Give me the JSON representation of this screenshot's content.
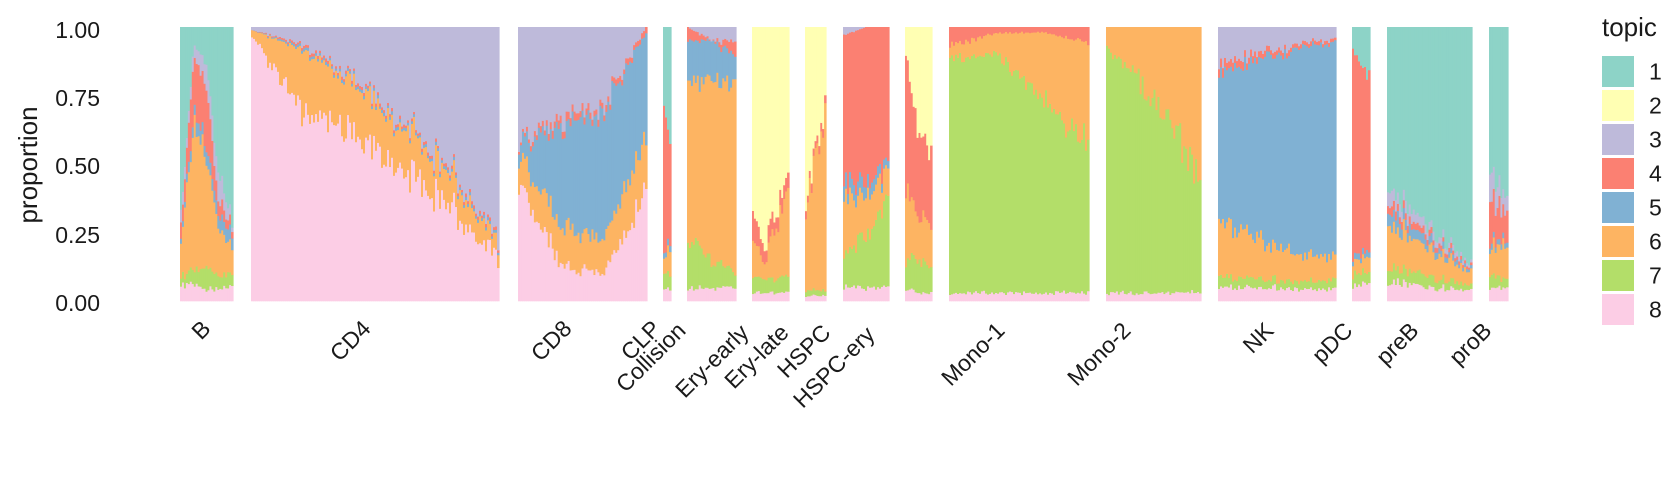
{
  "chart_data": {
    "type": "stacked-bar",
    "title": "",
    "xlabel": "",
    "ylabel": "proportion",
    "ylim": [
      0,
      1
    ],
    "yticks": [
      "0.00",
      "0.25",
      "0.50",
      "0.75",
      "1.00"
    ],
    "legend": {
      "title": "topic",
      "position": "right",
      "labels": [
        "1",
        "2",
        "3",
        "4",
        "5",
        "6",
        "7",
        "8"
      ]
    },
    "topic_colors": {
      "1": "#8DD3C7",
      "2": "#FFFFB3",
      "3": "#BEBADA",
      "4": "#FB8072",
      "5": "#80B1D3",
      "6": "#FDB462",
      "7": "#B3DE69",
      "8": "#FCCDE5"
    },
    "stack_order_bottom_to_top": [
      "8",
      "7",
      "6",
      "5",
      "4",
      "3",
      "2",
      "1"
    ],
    "groups": [
      {
        "name": "B",
        "profile": [
          {
            "8": 0.06,
            "7": 0.03,
            "6": 0.1,
            "5": 0.02,
            "4": 0.05,
            "3": 0.04,
            "1": 0.7
          },
          {
            "8": 0.06,
            "7": 0.05,
            "6": 0.55,
            "5": 0.04,
            "4": 0.2,
            "3": 0.05,
            "1": 0.05
          },
          {
            "8": 0.04,
            "7": 0.08,
            "6": 0.4,
            "5": 0.05,
            "4": 0.2,
            "3": 0.08,
            "1": 0.15
          },
          {
            "8": 0.05,
            "7": 0.05,
            "6": 0.15,
            "5": 0.05,
            "4": 0.05,
            "3": 0.1,
            "1": 0.55
          },
          {
            "8": 0.05,
            "7": 0.05,
            "6": 0.1,
            "5": 0.05,
            "4": 0.03,
            "3": 0.02,
            "1": 0.7
          }
        ]
      },
      {
        "name": "CD4",
        "profile": [
          {
            "8": 0.97,
            "7": 0.0,
            "6": 0.02,
            "5": 0.0,
            "4": 0.0,
            "3": 0.01
          },
          {
            "8": 0.7,
            "7": 0.0,
            "6": 0.22,
            "5": 0.01,
            "4": 0.01,
            "3": 0.06
          },
          {
            "8": 0.62,
            "7": 0.0,
            "6": 0.18,
            "5": 0.01,
            "4": 0.01,
            "3": 0.18
          },
          {
            "8": 0.5,
            "7": 0.0,
            "6": 0.16,
            "5": 0.01,
            "4": 0.01,
            "3": 0.32
          },
          {
            "8": 0.35,
            "7": 0.0,
            "6": 0.12,
            "5": 0.01,
            "4": 0.01,
            "3": 0.51
          },
          {
            "8": 0.15,
            "7": 0.0,
            "6": 0.05,
            "5": 0.01,
            "4": 0.01,
            "3": 0.78
          }
        ]
      },
      {
        "name": "CD8",
        "profile": [
          {
            "8": 0.45,
            "7": 0.0,
            "6": 0.1,
            "5": 0.05,
            "4": 0.01,
            "3": 0.39
          },
          {
            "8": 0.12,
            "7": 0.0,
            "6": 0.15,
            "5": 0.35,
            "4": 0.03,
            "3": 0.35
          },
          {
            "8": 0.1,
            "7": 0.0,
            "6": 0.12,
            "5": 0.48,
            "4": 0.02,
            "3": 0.28
          },
          {
            "8": 0.4,
            "7": 0.0,
            "6": 0.2,
            "5": 0.38,
            "4": 0.02,
            "3": 0.0
          }
        ]
      },
      {
        "name": "CLP",
        "profile": [
          {
            "8": 0.05,
            "7": 0.05,
            "6": 0.05,
            "5": 0.02,
            "4": 0.55,
            "1": 0.28
          },
          {
            "8": 0.05,
            "7": 0.05,
            "6": 0.1,
            "5": 0.02,
            "4": 0.4,
            "1": 0.38
          }
        ]
      },
      {
        "name": "Collision",
        "profile": [
          {
            "8": 0.05,
            "7": 0.2,
            "6": 0.55,
            "5": 0.15,
            "4": 0.05
          },
          {
            "8": 0.05,
            "7": 0.1,
            "6": 0.65,
            "5": 0.15,
            "3": 0.05
          },
          {
            "8": 0.05,
            "7": 0.05,
            "6": 0.7,
            "5": 0.1,
            "4": 0.05,
            "3": 0.05
          }
        ]
      },
      {
        "name": "Ery-early",
        "profile": [
          {
            "8": 0.03,
            "7": 0.05,
            "6": 0.15,
            "4": 0.1,
            "2": 0.67
          },
          {
            "8": 0.03,
            "7": 0.05,
            "6": 0.05,
            "4": 0.05,
            "2": 0.82
          },
          {
            "8": 0.03,
            "7": 0.05,
            "6": 0.2,
            "4": 0.05,
            "2": 0.67
          },
          {
            "8": 0.03,
            "7": 0.05,
            "6": 0.28,
            "4": 0.05,
            "2": 0.59
          }
        ]
      },
      {
        "name": "Ery-late",
        "profile": [
          {
            "8": 0.02,
            "7": 0.02,
            "6": 0.3,
            "4": 0.03,
            "2": 0.63
          },
          {
            "8": 0.02,
            "7": 0.02,
            "6": 0.62,
            "4": 0.03,
            "2": 0.31
          }
        ]
      },
      {
        "name": "HSPC",
        "profile": [
          {
            "8": 0.05,
            "7": 0.1,
            "6": 0.2,
            "5": 0.05,
            "4": 0.57,
            "3": 0.03
          },
          {
            "8": 0.05,
            "7": 0.2,
            "6": 0.15,
            "5": 0.05,
            "4": 0.55
          },
          {
            "8": 0.05,
            "7": 0.3,
            "6": 0.1,
            "5": 0.03,
            "4": 0.52
          }
        ]
      },
      {
        "name": "HSPC-ery",
        "profile": [
          {
            "8": 0.05,
            "7": 0.1,
            "6": 0.25,
            "4": 0.5,
            "2": 0.1
          },
          {
            "8": 0.03,
            "7": 0.12,
            "6": 0.15,
            "4": 0.3,
            "2": 0.4
          },
          {
            "8": 0.03,
            "7": 0.1,
            "6": 0.15,
            "4": 0.25,
            "2": 0.47
          }
        ]
      },
      {
        "name": "Mono-1",
        "profile": [
          {
            "8": 0.03,
            "7": 0.85,
            "6": 0.05,
            "4": 0.07
          },
          {
            "8": 0.03,
            "7": 0.87,
            "6": 0.08,
            "4": 0.02
          },
          {
            "8": 0.03,
            "7": 0.7,
            "6": 0.25,
            "4": 0.02
          },
          {
            "8": 0.03,
            "7": 0.55,
            "6": 0.37,
            "4": 0.05
          }
        ]
      },
      {
        "name": "Mono-2",
        "profile": [
          {
            "8": 0.03,
            "7": 0.9,
            "6": 0.07
          },
          {
            "8": 0.03,
            "7": 0.78,
            "6": 0.19
          },
          {
            "8": 0.03,
            "7": 0.62,
            "6": 0.35
          },
          {
            "8": 0.03,
            "7": 0.45,
            "6": 0.52
          }
        ]
      },
      {
        "name": "NK",
        "profile": [
          {
            "8": 0.05,
            "7": 0.04,
            "6": 0.2,
            "5": 0.55,
            "4": 0.03,
            "3": 0.13
          },
          {
            "8": 0.05,
            "7": 0.03,
            "6": 0.12,
            "5": 0.7,
            "4": 0.02,
            "3": 0.08
          },
          {
            "8": 0.04,
            "7": 0.03,
            "6": 0.08,
            "5": 0.8,
            "4": 0.01,
            "3": 0.04
          }
        ]
      },
      {
        "name": "pDC",
        "profile": [
          {
            "8": 0.06,
            "7": 0.04,
            "6": 0.05,
            "5": 0.02,
            "4": 0.75,
            "1": 0.08
          },
          {
            "8": 0.06,
            "7": 0.04,
            "6": 0.05,
            "5": 0.02,
            "4": 0.63,
            "1": 0.2
          }
        ]
      },
      {
        "name": "preB",
        "profile": [
          {
            "8": 0.07,
            "7": 0.05,
            "6": 0.15,
            "5": 0.05,
            "4": 0.03,
            "3": 0.05,
            "1": 0.6
          },
          {
            "8": 0.05,
            "7": 0.04,
            "6": 0.1,
            "5": 0.03,
            "4": 0.02,
            "3": 0.03,
            "1": 0.73
          },
          {
            "8": 0.04,
            "7": 0.02,
            "6": 0.05,
            "5": 0.01,
            "4": 0.01,
            "3": 0.01,
            "1": 0.86
          }
        ]
      },
      {
        "name": "proB",
        "profile": [
          {
            "8": 0.05,
            "7": 0.05,
            "6": 0.1,
            "5": 0.02,
            "4": 0.15,
            "3": 0.1,
            "1": 0.53
          },
          {
            "8": 0.05,
            "7": 0.03,
            "6": 0.12,
            "5": 0.02,
            "4": 0.1,
            "3": 0.05,
            "1": 0.63
          }
        ]
      }
    ]
  }
}
